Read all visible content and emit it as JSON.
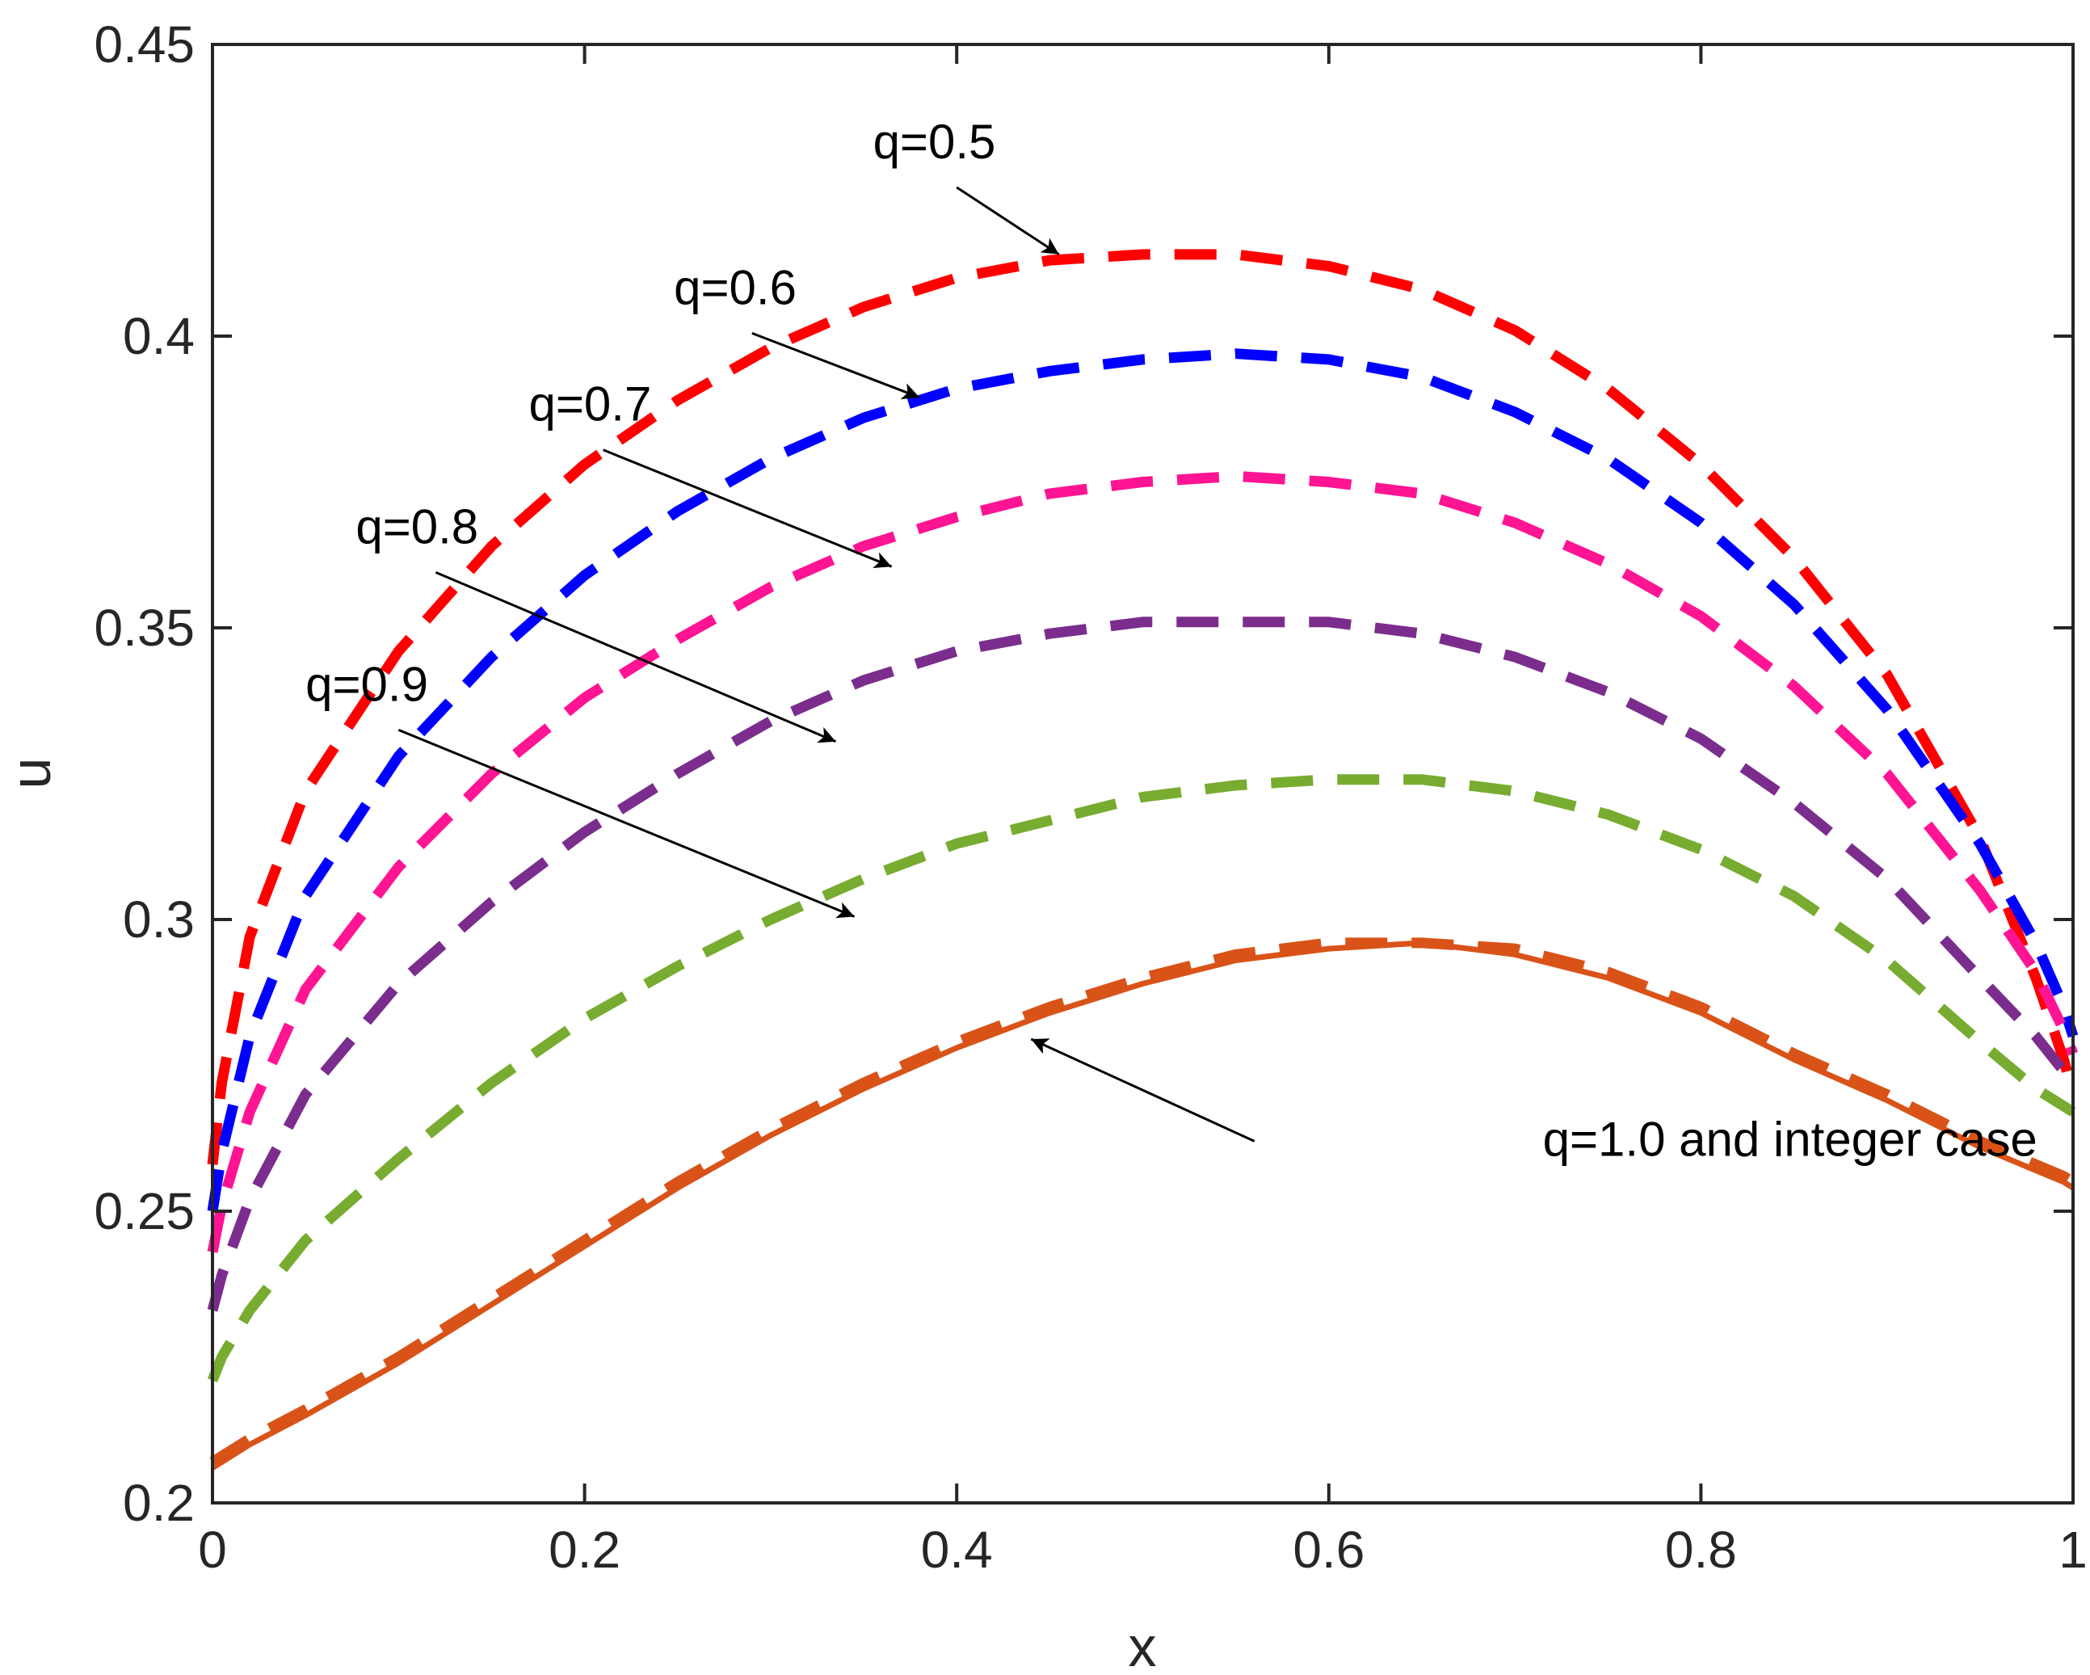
{
  "chart_data": {
    "type": "line",
    "title": "",
    "xlabel": "x",
    "ylabel": "u",
    "xlim": [
      0,
      1
    ],
    "ylim": [
      0.2,
      0.45
    ],
    "grid": false,
    "xticks": [
      0,
      0.2,
      0.4,
      0.6,
      0.8,
      1
    ],
    "xtick_labels": [
      "0",
      "0.2",
      "0.4",
      "0.6",
      "0.8",
      "1"
    ],
    "yticks": [
      0.2,
      0.25,
      0.3,
      0.35,
      0.4,
      0.45
    ],
    "ytick_labels": [
      "0.2",
      "0.25",
      "0.3",
      "0.35",
      "0.4",
      "0.45"
    ],
    "x": [
      0,
      0.005,
      0.02,
      0.05,
      0.1,
      0.15,
      0.2,
      0.25,
      0.3,
      0.35,
      0.4,
      0.45,
      0.5,
      0.55,
      0.6,
      0.65,
      0.7,
      0.75,
      0.8,
      0.85,
      0.9,
      0.95,
      0.98,
      0.995,
      1
    ],
    "series": [
      {
        "name": "q=0.5",
        "color": "#ff0000",
        "style": "dashed",
        "values": [
          0.258,
          0.272,
          0.297,
          0.322,
          0.346,
          0.364,
          0.378,
          0.389,
          0.398,
          0.405,
          0.41,
          0.413,
          0.414,
          0.414,
          0.412,
          0.408,
          0.401,
          0.391,
          0.378,
          0.362,
          0.342,
          0.314,
          0.29,
          0.276,
          0.27
        ]
      },
      {
        "name": "q=0.6",
        "color": "#0000ff",
        "style": "dashed",
        "values": [
          0.25,
          0.26,
          0.28,
          0.304,
          0.328,
          0.345,
          0.359,
          0.37,
          0.379,
          0.386,
          0.391,
          0.394,
          0.396,
          0.397,
          0.396,
          0.393,
          0.387,
          0.379,
          0.368,
          0.354,
          0.336,
          0.313,
          0.296,
          0.285,
          0.28
        ]
      },
      {
        "name": "q=0.7",
        "color": "#ff1493",
        "style": "dashed",
        "values": [
          0.243,
          0.251,
          0.267,
          0.288,
          0.309,
          0.325,
          0.338,
          0.348,
          0.357,
          0.364,
          0.369,
          0.373,
          0.375,
          0.376,
          0.375,
          0.373,
          0.368,
          0.361,
          0.352,
          0.34,
          0.325,
          0.305,
          0.291,
          0.281,
          0.277
        ]
      },
      {
        "name": "q=0.8",
        "color": "#7b2d8e",
        "style": "dashed",
        "values": [
          0.233,
          0.239,
          0.252,
          0.27,
          0.289,
          0.303,
          0.315,
          0.325,
          0.334,
          0.341,
          0.346,
          0.349,
          0.351,
          0.351,
          0.351,
          0.349,
          0.345,
          0.339,
          0.331,
          0.32,
          0.307,
          0.29,
          0.28,
          0.274,
          0.272
        ]
      },
      {
        "name": "q=0.9",
        "color": "#77ac30",
        "style": "dashed",
        "values": [
          0.221,
          0.225,
          0.233,
          0.245,
          0.259,
          0.272,
          0.283,
          0.292,
          0.3,
          0.307,
          0.313,
          0.317,
          0.321,
          0.323,
          0.324,
          0.324,
          0.322,
          0.318,
          0.312,
          0.304,
          0.293,
          0.279,
          0.271,
          0.268,
          0.267
        ]
      },
      {
        "name": "q=1.0",
        "color": "#d95319",
        "style": "dashed",
        "values": [
          0.207,
          0.208,
          0.211,
          0.216,
          0.225,
          0.235,
          0.245,
          0.255,
          0.264,
          0.272,
          0.279,
          0.285,
          0.29,
          0.294,
          0.296,
          0.296,
          0.295,
          0.291,
          0.285,
          0.277,
          0.27,
          0.262,
          0.258,
          0.256,
          0.255
        ]
      },
      {
        "name": "integer case",
        "color": "#d95319",
        "style": "solid",
        "values": [
          0.206,
          0.207,
          0.21,
          0.215,
          0.224,
          0.234,
          0.244,
          0.254,
          0.263,
          0.271,
          0.278,
          0.284,
          0.289,
          0.293,
          0.295,
          0.296,
          0.294,
          0.29,
          0.284,
          0.276,
          0.269,
          0.261,
          0.257,
          0.255,
          0.254
        ]
      }
    ],
    "annotations": [
      {
        "text": "q=0.5",
        "text_at": [
          0.355,
          0.4305
        ],
        "arrow_from": [
          0.4,
          0.4255
        ],
        "arrow_to": [
          0.455,
          0.414
        ]
      },
      {
        "text": "q=0.6",
        "text_at": [
          0.248,
          0.4055
        ],
        "arrow_from": [
          0.29,
          0.4005
        ],
        "arrow_to": [
          0.38,
          0.3895
        ]
      },
      {
        "text": "q=0.7",
        "text_at": [
          0.17,
          0.3855
        ],
        "arrow_from": [
          0.21,
          0.3805
        ],
        "arrow_to": [
          0.365,
          0.3605
        ]
      },
      {
        "text": "q=0.8",
        "text_at": [
          0.077,
          0.3645
        ],
        "arrow_from": [
          0.12,
          0.3595
        ],
        "arrow_to": [
          0.335,
          0.3305
        ]
      },
      {
        "text": "q=0.9",
        "text_at": [
          0.05,
          0.3375
        ],
        "arrow_from": [
          0.1,
          0.3325
        ],
        "arrow_to": [
          0.345,
          0.3005
        ]
      },
      {
        "text": "q=1.0 and integer case",
        "text_at": [
          0.715,
          0.2595
        ],
        "arrow_from": [
          0.56,
          0.262
        ],
        "arrow_to": [
          0.44,
          0.2795
        ]
      }
    ]
  }
}
